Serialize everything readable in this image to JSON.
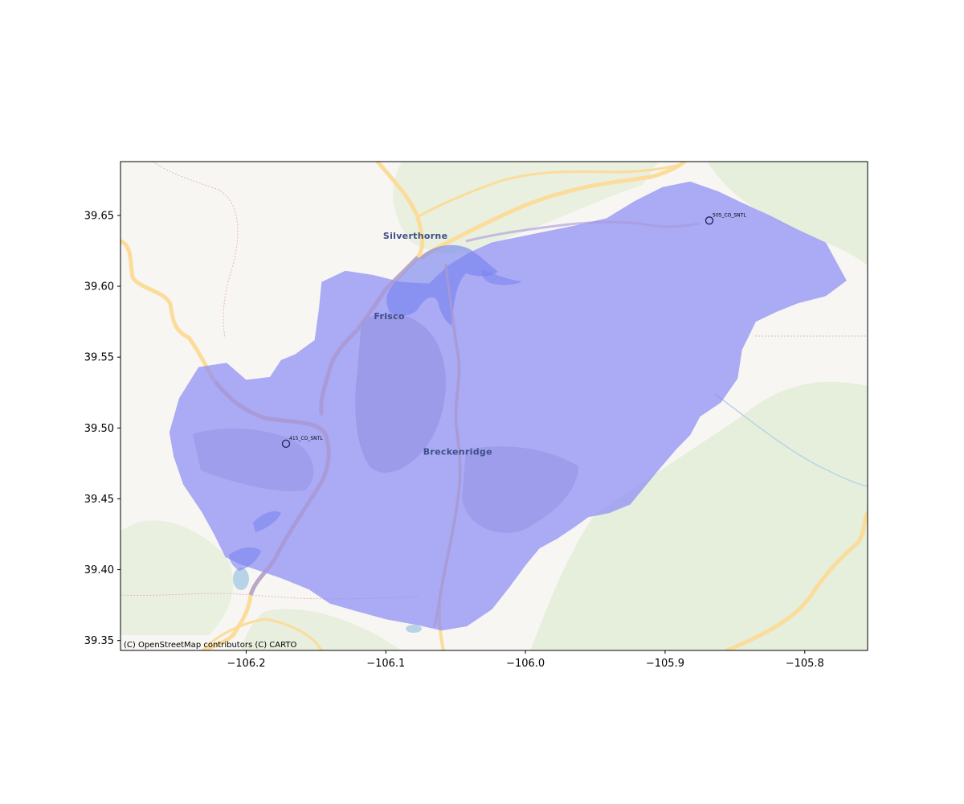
{
  "map": {
    "attribution": "(C) OpenStreetMap contributors (C) CARTO",
    "place_labels": [
      {
        "name": "Silverthorne",
        "lon": -106.0788,
        "lat": 39.6336
      },
      {
        "name": "Frisco",
        "lon": -106.0975,
        "lat": 39.5767
      },
      {
        "name": "Breckenridge",
        "lon": -106.0485,
        "lat": 39.4811
      }
    ],
    "stations": [
      {
        "id": "415_CO_SNTL",
        "lon": -106.1715,
        "lat": 39.4889
      },
      {
        "id": "505_CO_SNTL",
        "lon": -105.8683,
        "lat": 39.6464
      }
    ],
    "colors": {
      "basin_fill": "#8c8cf5",
      "background": "#f8f6f3",
      "forest": "#e6efdc",
      "road": "#fbdc9a",
      "water": "#b9d3e6",
      "station_edge": "#1f1f5a"
    }
  },
  "chart_data": {
    "type": "map",
    "title": "",
    "xlabel": "",
    "ylabel": "",
    "xlim": [
      -106.29,
      -105.755
    ],
    "ylim": [
      39.343,
      39.688
    ],
    "xticks": [
      -106.2,
      -106.1,
      -106.0,
      -105.9,
      -105.8
    ],
    "xtick_labels": [
      "−106.2",
      "−106.1",
      "−106.0",
      "−105.9",
      "−105.8"
    ],
    "yticks": [
      39.35,
      39.4,
      39.45,
      39.5,
      39.55,
      39.6,
      39.65
    ],
    "ytick_labels": [
      "39.35",
      "39.40",
      "39.45",
      "39.50",
      "39.55",
      "39.60",
      "39.65"
    ],
    "basin_polygon": [
      [
        -106.255,
        39.497
      ],
      [
        -106.248,
        39.521
      ],
      [
        -106.234,
        39.543
      ],
      [
        -106.214,
        39.546
      ],
      [
        -106.2,
        39.534
      ],
      [
        -106.183,
        39.536
      ],
      [
        -106.175,
        39.548
      ],
      [
        -106.165,
        39.552
      ],
      [
        -106.151,
        39.562
      ],
      [
        -106.148,
        39.583
      ],
      [
        -106.146,
        39.603
      ],
      [
        -106.129,
        39.611
      ],
      [
        -106.109,
        39.608
      ],
      [
        -106.089,
        39.603
      ],
      [
        -106.069,
        39.602
      ],
      [
        -106.055,
        39.615
      ],
      [
        -106.04,
        39.624
      ],
      [
        -106.024,
        39.631
      ],
      [
        -106.004,
        39.635
      ],
      [
        -105.984,
        39.639
      ],
      [
        -105.964,
        39.643
      ],
      [
        -105.942,
        39.648
      ],
      [
        -105.922,
        39.66
      ],
      [
        -105.902,
        39.67
      ],
      [
        -105.882,
        39.674
      ],
      [
        -105.862,
        39.667
      ],
      [
        -105.845,
        39.659
      ],
      [
        -105.825,
        39.65
      ],
      [
        -105.805,
        39.64
      ],
      [
        -105.785,
        39.631
      ],
      [
        -105.77,
        39.604
      ],
      [
        -105.785,
        39.593
      ],
      [
        -105.805,
        39.588
      ],
      [
        -105.82,
        39.582
      ],
      [
        -105.835,
        39.575
      ],
      [
        -105.845,
        39.555
      ],
      [
        -105.848,
        39.535
      ],
      [
        -105.86,
        39.518
      ],
      [
        -105.875,
        39.508
      ],
      [
        -105.882,
        39.495
      ],
      [
        -105.892,
        39.485
      ],
      [
        -105.905,
        39.47
      ],
      [
        -105.915,
        39.458
      ],
      [
        -105.925,
        39.446
      ],
      [
        -105.94,
        39.44
      ],
      [
        -105.955,
        39.437
      ],
      [
        -105.965,
        39.43
      ],
      [
        -105.977,
        39.422
      ],
      [
        -105.99,
        39.415
      ],
      [
        -106.0,
        39.403
      ],
      [
        -106.012,
        39.387
      ],
      [
        -106.024,
        39.372
      ],
      [
        -106.042,
        39.36
      ],
      [
        -106.06,
        39.357
      ],
      [
        -106.078,
        39.361
      ],
      [
        -106.1,
        39.365
      ],
      [
        -106.122,
        39.371
      ],
      [
        -106.14,
        39.376
      ],
      [
        -106.155,
        39.386
      ],
      [
        -106.175,
        39.394
      ],
      [
        -106.193,
        39.4
      ],
      [
        -106.205,
        39.404
      ],
      [
        -106.215,
        39.409
      ],
      [
        -106.223,
        39.425
      ],
      [
        -106.232,
        39.441
      ],
      [
        -106.245,
        39.46
      ],
      [
        -106.252,
        39.48
      ]
    ]
  }
}
